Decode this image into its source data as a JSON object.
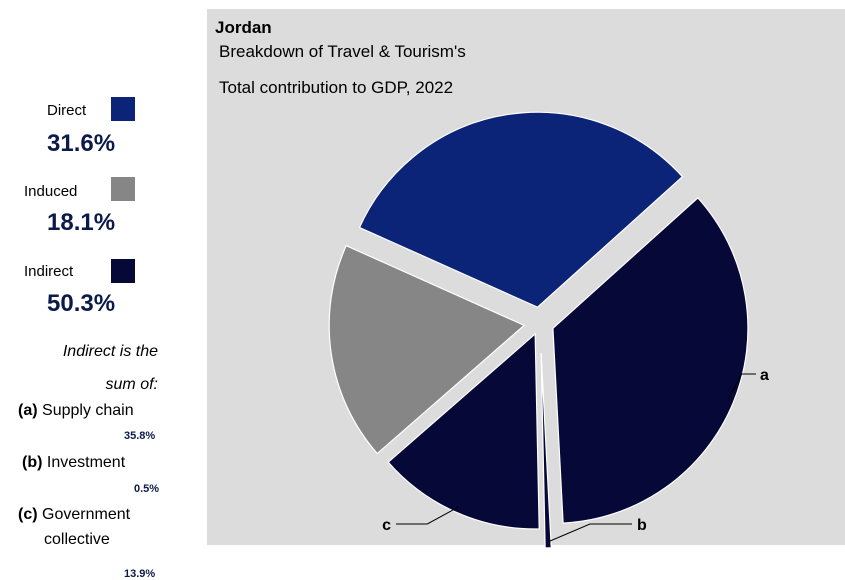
{
  "chart_data": {
    "type": "pie",
    "title": "Jordan",
    "subtitle_line1": "Breakdown of Travel & Tourism's",
    "subtitle_line2": "Total contribution to GDP, 2022",
    "slices": [
      {
        "key": "a",
        "label": "a",
        "value": 35.8,
        "color": "#060838"
      },
      {
        "key": "b",
        "label": "b",
        "value": 0.5,
        "color": "#060838"
      },
      {
        "key": "c",
        "label": "c",
        "value": 13.9,
        "color": "#060838"
      },
      {
        "key": "induced",
        "label": "",
        "value": 18.1,
        "color": "#868686"
      },
      {
        "key": "direct",
        "label": "",
        "value": 31.6,
        "color": "#0b2478"
      }
    ]
  },
  "legend": {
    "direct": {
      "label": "Direct",
      "value": "31.6%",
      "color": "#0b2478"
    },
    "induced": {
      "label": "Induced",
      "value": "18.1%",
      "color": "#868686"
    },
    "indirect": {
      "label": "Indirect",
      "value": "50.3%",
      "color": "#060838"
    }
  },
  "note": {
    "line1": "Indirect is the",
    "line2": "sum of:",
    "a_tag": "(a)",
    "a_text": "Supply chain",
    "a_value": "35.8%",
    "b_tag": "(b)",
    "b_text": "Investment",
    "b_value": "0.5%",
    "c_tag": "(c)",
    "c_text": "Government",
    "c_text2": "collective",
    "c_value": "13.9%"
  }
}
